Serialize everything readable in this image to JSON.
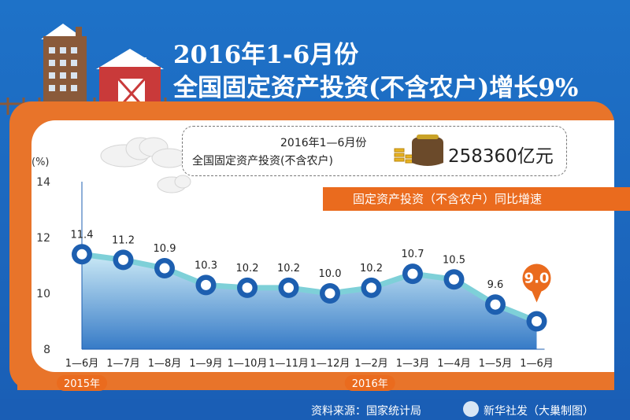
{
  "title_line1": "2016年1-6月份",
  "title_line2": "全国固定资产投资(不含农户)增长9%",
  "info": {
    "line1": "2016年1—6月份",
    "line2": "全国固定资产投资(不含农户)",
    "total": "258360亿元"
  },
  "legend_label": "固定资产投资（不含农户）同比增速",
  "footer": {
    "source": "资料来源：国家统计局",
    "credit": "新华社发（大巢制图）"
  },
  "colors": {
    "panel": "#e8742a",
    "line": "#7ed0d8",
    "marker": "#1d5fb0",
    "area_top": "#c8e8f5",
    "area_bottom": "#2c74c4",
    "highlight": "#ea6b1e"
  },
  "chart_data": {
    "type": "line",
    "ylabel": "(%)",
    "ylim": [
      8,
      14
    ],
    "yticks": [
      "8",
      "10",
      "12",
      "14"
    ],
    "categories": [
      "1—6月",
      "1—7月",
      "1—8月",
      "1—9月",
      "1—10月",
      "1—11月",
      "1—12月",
      "1—2月",
      "1—3月",
      "1—4月",
      "1—5月",
      "1—6月"
    ],
    "values": [
      11.4,
      11.2,
      10.9,
      10.3,
      10.2,
      10.2,
      10.0,
      10.2,
      10.7,
      10.5,
      9.6,
      9.0
    ],
    "labels": [
      "11.4",
      "11.2",
      "10.9",
      "10.3",
      "10.2",
      "10.2",
      "10.0",
      "10.2",
      "10.7",
      "10.5",
      "9.6",
      "9.0"
    ],
    "year_labels": [
      "2015年",
      "2016年"
    ],
    "grid": false,
    "area_fill": true
  }
}
